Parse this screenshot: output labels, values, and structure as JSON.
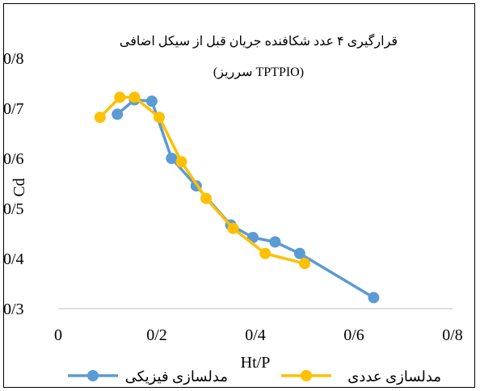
{
  "chart_data": {
    "type": "line",
    "title": "قرارگیری ۴ عدد شکافنده جریان قبل از سیکل اضافی",
    "subtitle": "(سرریز TPTPIO)",
    "xlabel": "Ht/P",
    "ylabel": "Cd",
    "xlim": [
      0,
      0.8
    ],
    "ylim": [
      0.3,
      0.8
    ],
    "x_ticks": [
      "0",
      "0/2",
      "0/4",
      "0/6",
      "0/8"
    ],
    "y_ticks": [
      "0/3",
      "0/4",
      "0/5",
      "0/6",
      "0/7",
      "0/8"
    ],
    "grid": false,
    "legend_position": "bottom",
    "series": [
      {
        "name": "مدلسازی فیزیکی",
        "color": "#5b9bd5",
        "x": [
          0.12,
          0.155,
          0.19,
          0.23,
          0.28,
          0.35,
          0.395,
          0.44,
          0.49,
          0.64
        ],
        "y": [
          0.688,
          0.717,
          0.714,
          0.6,
          0.545,
          0.467,
          0.442,
          0.433,
          0.41,
          0.322
        ]
      },
      {
        "name": "مدلسازی عددی",
        "color": "#ffc000",
        "x": [
          0.085,
          0.125,
          0.155,
          0.205,
          0.25,
          0.3,
          0.355,
          0.42,
          0.5
        ],
        "y": [
          0.682,
          0.722,
          0.722,
          0.682,
          0.593,
          0.52,
          0.46,
          0.41,
          0.39
        ]
      }
    ]
  }
}
